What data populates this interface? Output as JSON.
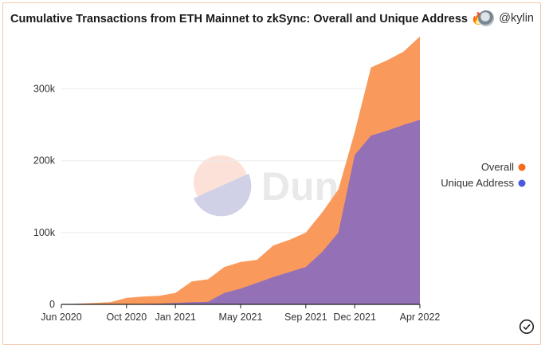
{
  "header": {
    "title": "Cumulative Transactions from ETH Mainnet to zkSync: Overall and Unique Address",
    "title_emoji": "🔥",
    "username": "@kylin"
  },
  "watermark": {
    "text": "Dune"
  },
  "footer": {
    "check_icon": "check-circle-icon"
  },
  "chart_data": {
    "type": "area",
    "title": "Cumulative Transactions from ETH Mainnet to zkSync: Overall and Unique Address",
    "xlabel": "",
    "ylabel": "",
    "x_ticks": [
      "Jun 2020",
      "Oct 2020",
      "Jan 2021",
      "May 2021",
      "Sep 2021",
      "Dec 2021",
      "Apr 2022"
    ],
    "y_ticks": [
      "0",
      "100k",
      "200k",
      "300k"
    ],
    "ylim": [
      0,
      375000
    ],
    "legend_position": "right",
    "x_months": [
      0,
      1,
      2,
      3,
      4,
      5,
      6,
      7,
      8,
      9,
      10,
      11,
      12,
      13,
      14,
      15,
      16,
      17,
      18,
      19,
      20,
      21,
      22
    ],
    "series": [
      {
        "name": "Overall",
        "color": "#f99a5c",
        "legend_color": "#f66a1a",
        "values": [
          0,
          1000,
          2000,
          3000,
          9000,
          11000,
          12000,
          16000,
          32000,
          35000,
          52000,
          59000,
          62000,
          82000,
          90000,
          100000,
          128000,
          160000,
          240000,
          330000,
          340000,
          352000,
          373000
        ]
      },
      {
        "name": "Unique Address",
        "color": "#9470b6",
        "legend_color": "#4a5ae0",
        "values": [
          0,
          0,
          0,
          0,
          0,
          500,
          1000,
          2000,
          3000,
          3500,
          16000,
          22000,
          30000,
          38000,
          45000,
          52000,
          73000,
          100000,
          208000,
          235000,
          242000,
          250000,
          257000
        ]
      }
    ]
  }
}
